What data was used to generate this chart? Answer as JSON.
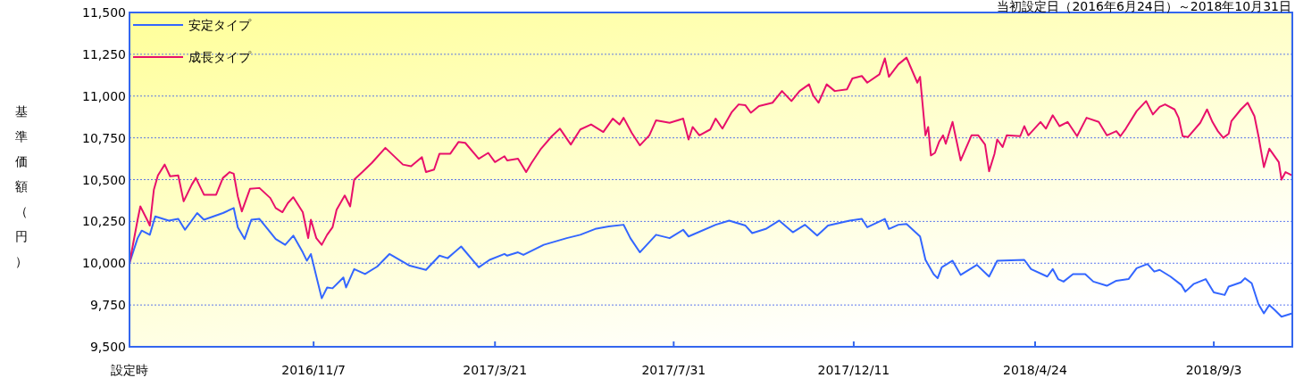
{
  "chart_data": {
    "type": "line",
    "title": "当初設定日（2016年6月24日）～2018年10月31日",
    "ylabel": "基準価額（円）",
    "xlim": [
      "2016-06-24",
      "2018-10-31"
    ],
    "xticks": [
      {
        "value": "2016-06-24",
        "label": "設定時"
      },
      {
        "value": "2016-11-07",
        "label": "2016/11/7"
      },
      {
        "value": "2017-03-21",
        "label": "2017/3/21"
      },
      {
        "value": "2017-07-31",
        "label": "2017/7/31"
      },
      {
        "value": "2017-12-11",
        "label": "2017/12/11"
      },
      {
        "value": "2018-04-24",
        "label": "2018/4/24"
      },
      {
        "value": "2018-09-03",
        "label": "2018/9/3"
      }
    ],
    "ylim": [
      9500,
      11500
    ],
    "yticks": [
      {
        "value": 9500,
        "label": "9,500"
      },
      {
        "value": 9750,
        "label": "9,750"
      },
      {
        "value": 10000,
        "label": "10,000"
      },
      {
        "value": 10250,
        "label": "10,250"
      },
      {
        "value": 10500,
        "label": "10,500"
      },
      {
        "value": 10750,
        "label": "10,750"
      },
      {
        "value": 11000,
        "label": "11,000"
      },
      {
        "value": 11250,
        "label": "11,250"
      },
      {
        "value": 11500,
        "label": "11,500"
      }
    ],
    "grid": "y",
    "legend": "top left",
    "marker": "none",
    "line_style": "solid",
    "series": [
      {
        "name": "安定タイプ",
        "color": "#3366ff",
        "x": [
          "2016-06-24",
          "2016-06-30",
          "2016-07-03",
          "2016-07-09",
          "2016-07-13",
          "2016-07-23",
          "2016-07-30",
          "2016-08-04",
          "2016-08-13",
          "2016-08-18",
          "2016-09-01",
          "2016-09-09",
          "2016-09-12",
          "2016-09-17",
          "2016-09-22",
          "2016-09-28",
          "2016-10-10",
          "2016-10-17",
          "2016-10-23",
          "2016-10-30",
          "2016-11-02",
          "2016-11-05",
          "2016-11-13",
          "2016-11-17",
          "2016-11-21",
          "2016-11-29",
          "2016-12-01",
          "2016-12-07",
          "2016-12-15",
          "2016-12-24",
          "2017-01-02",
          "2017-01-17",
          "2017-01-29",
          "2017-02-08",
          "2017-02-14",
          "2017-02-24",
          "2017-03-09",
          "2017-03-17",
          "2017-03-28",
          "2017-03-30",
          "2017-04-07",
          "2017-04-11",
          "2017-04-26",
          "2017-05-13",
          "2017-05-23",
          "2017-06-03",
          "2017-06-13",
          "2017-06-24",
          "2017-06-29",
          "2017-07-06",
          "2017-07-18",
          "2017-07-28",
          "2017-08-07",
          "2017-08-11",
          "2017-08-31",
          "2017-09-10",
          "2017-09-22",
          "2017-09-27",
          "2017-10-07",
          "2017-10-17",
          "2017-10-27",
          "2017-11-05",
          "2017-11-14",
          "2017-11-22",
          "2017-12-08",
          "2017-12-17",
          "2017-12-21",
          "2018-01-03",
          "2018-01-06",
          "2018-01-13",
          "2018-01-19",
          "2018-01-29",
          "2018-02-02",
          "2018-02-08",
          "2018-02-11",
          "2018-02-14",
          "2018-02-22",
          "2018-02-28",
          "2018-03-12",
          "2018-03-21",
          "2018-03-27",
          "2018-04-16",
          "2018-04-21",
          "2018-05-03",
          "2018-05-07",
          "2018-05-11",
          "2018-05-15",
          "2018-05-22",
          "2018-05-31",
          "2018-06-06",
          "2018-06-16",
          "2018-06-23",
          "2018-07-02",
          "2018-07-08",
          "2018-07-16",
          "2018-07-21",
          "2018-07-25",
          "2018-08-02",
          "2018-08-10",
          "2018-08-13",
          "2018-08-19",
          "2018-08-28",
          "2018-09-03",
          "2018-09-11",
          "2018-09-14",
          "2018-09-23",
          "2018-09-26",
          "2018-10-01",
          "2018-10-06",
          "2018-10-10",
          "2018-10-14",
          "2018-10-18",
          "2018-10-23",
          "2018-10-31"
        ],
        "values": [
          10000,
          10150,
          10195,
          10170,
          10280,
          10255,
          10265,
          10200,
          10300,
          10260,
          10300,
          10330,
          10215,
          10145,
          10260,
          10265,
          10145,
          10110,
          10165,
          10065,
          10015,
          10055,
          9790,
          9855,
          9850,
          9915,
          9855,
          9965,
          9935,
          9980,
          10055,
          9985,
          9960,
          10045,
          10030,
          10100,
          9975,
          10020,
          10055,
          10045,
          10065,
          10050,
          10110,
          10150,
          10170,
          10205,
          10220,
          10230,
          10150,
          10065,
          10170,
          10150,
          10200,
          10160,
          10230,
          10255,
          10225,
          10180,
          10205,
          10255,
          10185,
          10230,
          10165,
          10225,
          10255,
          10265,
          10215,
          10265,
          10205,
          10230,
          10235,
          10160,
          10020,
          9935,
          9910,
          9975,
          10015,
          9930,
          9990,
          9920,
          10015,
          10020,
          9965,
          9920,
          9965,
          9905,
          9890,
          9935,
          9935,
          9890,
          9865,
          9895,
          9905,
          9970,
          9995,
          9950,
          9960,
          9920,
          9870,
          9830,
          9875,
          9905,
          9825,
          9810,
          9860,
          9885,
          9910,
          9880,
          9755,
          9700,
          9750,
          9720,
          9680,
          9700
        ]
      },
      {
        "name": "成長タイプ",
        "color": "#e8106a",
        "x": [
          "2016-06-24",
          "2016-06-30",
          "2016-07-02",
          "2016-07-07",
          "2016-07-09",
          "2016-07-12",
          "2016-07-15",
          "2016-07-20",
          "2016-07-24",
          "2016-07-30",
          "2016-08-03",
          "2016-08-09",
          "2016-08-12",
          "2016-08-18",
          "2016-08-27",
          "2016-09-01",
          "2016-09-06",
          "2016-09-09",
          "2016-09-12",
          "2016-09-15",
          "2016-09-21",
          "2016-09-28",
          "2016-10-06",
          "2016-10-10",
          "2016-10-15",
          "2016-10-19",
          "2016-10-23",
          "2016-10-30",
          "2016-11-03",
          "2016-11-05",
          "2016-11-09",
          "2016-11-13",
          "2016-11-17",
          "2016-11-21",
          "2016-11-24",
          "2016-11-30",
          "2016-12-04",
          "2016-12-07",
          "2016-12-13",
          "2016-12-20",
          "2016-12-30",
          "2017-01-12",
          "2017-01-18",
          "2017-01-26",
          "2017-01-29",
          "2017-02-04",
          "2017-02-08",
          "2017-02-16",
          "2017-02-22",
          "2017-02-27",
          "2017-03-09",
          "2017-03-16",
          "2017-03-21",
          "2017-03-28",
          "2017-03-30",
          "2017-04-07",
          "2017-04-13",
          "2017-04-17",
          "2017-04-24",
          "2017-05-02",
          "2017-05-08",
          "2017-05-16",
          "2017-05-23",
          "2017-05-31",
          "2017-06-09",
          "2017-06-16",
          "2017-06-21",
          "2017-06-24",
          "2017-06-30",
          "2017-07-06",
          "2017-07-13",
          "2017-07-18",
          "2017-07-28",
          "2017-08-07",
          "2017-08-11",
          "2017-08-14",
          "2017-08-19",
          "2017-08-27",
          "2017-08-31",
          "2017-09-05",
          "2017-09-12",
          "2017-09-17",
          "2017-09-22",
          "2017-09-26",
          "2017-10-02",
          "2017-10-12",
          "2017-10-19",
          "2017-10-26",
          "2017-11-01",
          "2017-11-08",
          "2017-11-11",
          "2017-11-15",
          "2017-11-21",
          "2017-11-27",
          "2017-12-06",
          "2017-12-10",
          "2017-12-17",
          "2017-12-21",
          "2017-12-30",
          "2018-01-03",
          "2018-01-06",
          "2018-01-13",
          "2018-01-19",
          "2018-01-27",
          "2018-01-29",
          "2018-02-02",
          "2018-02-04",
          "2018-02-06",
          "2018-02-09",
          "2018-02-12",
          "2018-02-15",
          "2018-02-17",
          "2018-02-22",
          "2018-02-28",
          "2018-03-08",
          "2018-03-13",
          "2018-03-18",
          "2018-03-21",
          "2018-03-25",
          "2018-03-27",
          "2018-03-31",
          "2018-04-03",
          "2018-04-13",
          "2018-04-16",
          "2018-04-19",
          "2018-04-28",
          "2018-05-02",
          "2018-05-07",
          "2018-05-12",
          "2018-05-18",
          "2018-05-25",
          "2018-06-01",
          "2018-06-10",
          "2018-06-16",
          "2018-06-23",
          "2018-06-26",
          "2018-06-30",
          "2018-07-08",
          "2018-07-15",
          "2018-07-20",
          "2018-07-25",
          "2018-07-29",
          "2018-08-05",
          "2018-08-08",
          "2018-08-11",
          "2018-08-15",
          "2018-08-24",
          "2018-08-29",
          "2018-09-02",
          "2018-09-06",
          "2018-09-10",
          "2018-09-14",
          "2018-09-16",
          "2018-09-23",
          "2018-09-28",
          "2018-10-03",
          "2018-10-06",
          "2018-10-10",
          "2018-10-14",
          "2018-10-21",
          "2018-10-23",
          "2018-10-26",
          "2018-10-31"
        ],
        "values": [
          10000,
          10260,
          10340,
          10260,
          10225,
          10440,
          10525,
          10590,
          10520,
          10525,
          10370,
          10470,
          10510,
          10410,
          10410,
          10510,
          10545,
          10535,
          10400,
          10310,
          10445,
          10450,
          10390,
          10330,
          10305,
          10360,
          10395,
          10305,
          10150,
          10260,
          10150,
          10110,
          10170,
          10215,
          10320,
          10405,
          10340,
          10500,
          10545,
          10600,
          10690,
          10590,
          10580,
          10635,
          10545,
          10560,
          10655,
          10655,
          10725,
          10720,
          10625,
          10660,
          10605,
          10640,
          10615,
          10625,
          10545,
          10600,
          10685,
          10760,
          10805,
          10710,
          10800,
          10830,
          10785,
          10865,
          10830,
          10870,
          10780,
          10705,
          10765,
          10855,
          10840,
          10865,
          10740,
          10815,
          10765,
          10800,
          10865,
          10805,
          10905,
          10950,
          10945,
          10900,
          10940,
          10960,
          11030,
          10970,
          11030,
          11070,
          11005,
          10960,
          11070,
          11030,
          11040,
          11105,
          11120,
          11080,
          11130,
          11225,
          11115,
          11190,
          11230,
          11080,
          11115,
          10765,
          10815,
          10645,
          10660,
          10725,
          10765,
          10715,
          10845,
          10615,
          10765,
          10765,
          10710,
          10550,
          10655,
          10740,
          10695,
          10765,
          10760,
          10820,
          10765,
          10845,
          10805,
          10885,
          10820,
          10845,
          10760,
          10870,
          10845,
          10765,
          10790,
          10760,
          10805,
          10910,
          10970,
          10890,
          10935,
          10950,
          10920,
          10870,
          10760,
          10755,
          10840,
          10920,
          10845,
          10790,
          10750,
          10775,
          10850,
          10920,
          10960,
          10880,
          10760,
          10575,
          10685,
          10605,
          10500,
          10545,
          10525
        ]
      }
    ]
  }
}
